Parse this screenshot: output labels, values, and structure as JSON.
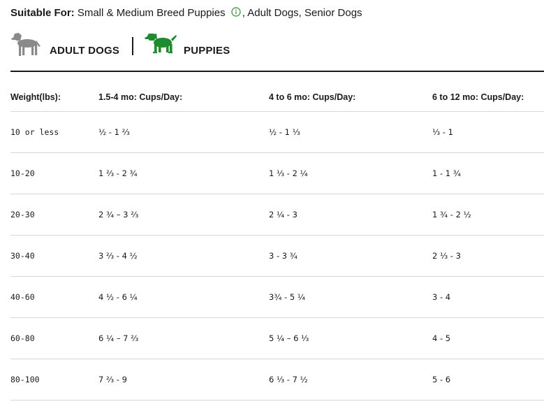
{
  "suitable_for": {
    "label": "Suitable For:",
    "first": "Small & Medium Breed Puppies",
    "rest": ", Adult Dogs, Senior Dogs",
    "info_icon": "info-circle-icon",
    "info_color": "#2e8b2e"
  },
  "tabs": [
    {
      "label": "ADULT DOGS",
      "icon": "adult-dog-icon",
      "color": "#8a8a8a",
      "selected": false
    },
    {
      "label": "PUPPIES",
      "icon": "puppy-icon",
      "color": "#1f8a2e",
      "selected": true
    }
  ],
  "table": {
    "headers": [
      "Weight(lbs):",
      "1.5-4 mo: Cups/Day:",
      "4 to 6 mo: Cups/Day:",
      "6 to 12 mo: Cups/Day:"
    ],
    "rows": [
      [
        "10 or less",
        "½ - 1 ⅔",
        "½ - 1 ⅓",
        "⅓ - 1"
      ],
      [
        "10-20",
        "1 ⅔ - 2 ¾",
        "1 ⅓ - 2 ¼",
        "1 - 1 ¾"
      ],
      [
        "20-30",
        "2 ¾ – 3 ⅔",
        "2 ¼ - 3",
        "1 ¾ - 2 ½"
      ],
      [
        "30-40",
        "3 ⅔ - 4 ½",
        "3 - 3 ¾",
        "2 ⅓ - 3"
      ],
      [
        "40-60",
        "4 ½ - 6 ¼",
        "3¾ - 5 ¼",
        "3 - 4"
      ],
      [
        "60-80",
        "6 ¼ – 7 ⅔",
        "5 ¼ – 6 ⅓",
        "4 - 5"
      ],
      [
        "80-100",
        "7 ⅔ - 9",
        "6 ⅓ - 7 ½",
        "5 - 6"
      ]
    ]
  }
}
